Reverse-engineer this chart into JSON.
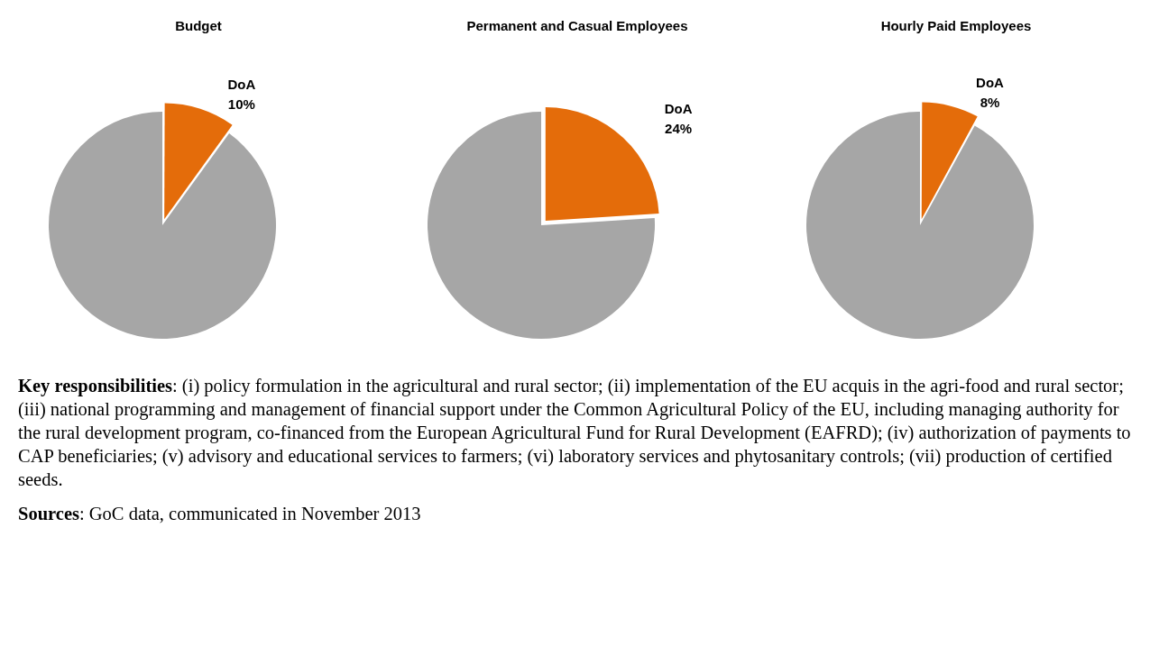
{
  "chart_data": [
    {
      "type": "pie",
      "title": "Budget",
      "categories": [
        "DoA",
        null
      ],
      "values": [
        10,
        90
      ],
      "colors": [
        "#e46c0a",
        "#a6a6a6"
      ],
      "value_labels": [
        "10%",
        null
      ]
    },
    {
      "type": "pie",
      "title": "Permanent and Casual Employees",
      "categories": [
        "DoA",
        null
      ],
      "values": [
        24,
        76
      ],
      "colors": [
        "#e46c0a",
        "#a6a6a6"
      ],
      "value_labels": [
        "24%",
        null
      ]
    },
    {
      "type": "pie",
      "title": "Hourly Paid Employees",
      "categories": [
        "DoA",
        null
      ],
      "values": [
        8,
        92
      ],
      "colors": [
        "#e46c0a",
        "#a6a6a6"
      ],
      "value_labels": [
        "8%",
        null
      ]
    },
    {
      "type": "other",
      "annotations": [
        "Key responsibilities:  (i) policy formulation in the agricultural and rural sector; (ii) implementation of the EU acquis in the agri-food and rural sector; (iii) national programming and management of financial support under the Common Agricultural Policy of the EU, including managing authority for the rural development program, co-financed from the European Agricultural Fund for Rural Development (EAFRD); (iv) authorization of payments to CAP beneficiaries; (v) advisory and educational services to farmers; (vi) laboratory services  and phytosanitary controls; (vii) production of certified seeds.",
        "Sources: GoC data, communicated in November 2013"
      ]
    }
  ]
}
